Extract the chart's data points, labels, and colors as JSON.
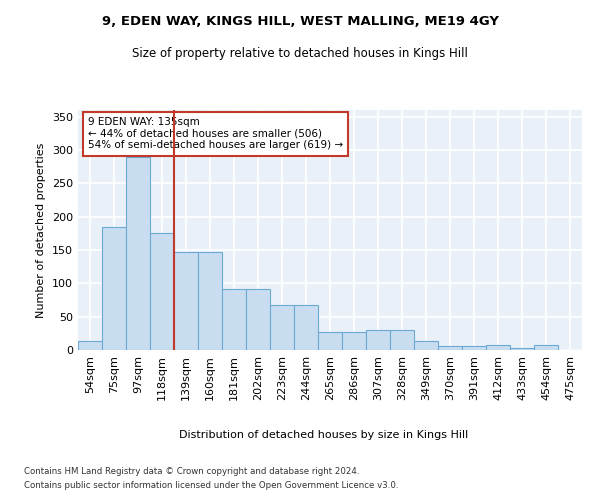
{
  "title1": "9, EDEN WAY, KINGS HILL, WEST MALLING, ME19 4GY",
  "title2": "Size of property relative to detached houses in Kings Hill",
  "xlabel": "Distribution of detached houses by size in Kings Hill",
  "ylabel": "Number of detached properties",
  "categories": [
    "54sqm",
    "75sqm",
    "97sqm",
    "118sqm",
    "139sqm",
    "160sqm",
    "181sqm",
    "202sqm",
    "223sqm",
    "244sqm",
    "265sqm",
    "286sqm",
    "307sqm",
    "328sqm",
    "349sqm",
    "370sqm",
    "391sqm",
    "412sqm",
    "433sqm",
    "454sqm",
    "475sqm"
  ],
  "values": [
    13,
    185,
    290,
    175,
    147,
    147,
    92,
    92,
    68,
    68,
    27,
    27,
    30,
    30,
    14,
    6,
    6,
    8,
    3,
    7,
    0
  ],
  "bar_color": "#c9ddf0",
  "bar_edge_color": "#6aaad4",
  "vline_color": "#c0392b",
  "annotation_text": "9 EDEN WAY: 135sqm\n← 44% of detached houses are smaller (506)\n54% of semi-detached houses are larger (619) →",
  "annotation_box_color": "#ffffff",
  "annotation_box_edge": "#c0392b",
  "ylim": [
    0,
    360
  ],
  "yticks": [
    0,
    50,
    100,
    150,
    200,
    250,
    300,
    350
  ],
  "footer1": "Contains HM Land Registry data © Crown copyright and database right 2024.",
  "footer2": "Contains public sector information licensed under the Open Government Licence v3.0.",
  "plot_bg_color": "#eaf0f8"
}
